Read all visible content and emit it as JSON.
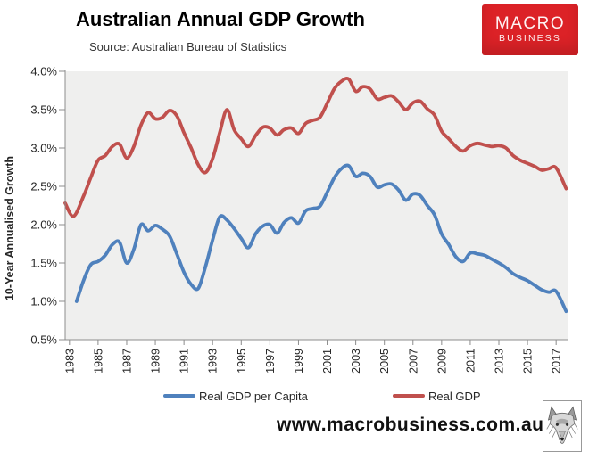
{
  "header": {
    "title": "Australian Annual GDP Growth",
    "subtitle": "Source: Australian Bureau of Statistics"
  },
  "logo": {
    "line1": "MACRO",
    "line2": "BUSINESS",
    "bg_color": "#dc2227",
    "text_color": "#ffffff"
  },
  "footer": {
    "watermark": "www.macrobusiness.com.au"
  },
  "chart_data": {
    "type": "line",
    "title": "Australian Annual GDP Growth",
    "xlabel": "",
    "ylabel": "10-Year Annualised Growth",
    "ylim": [
      0.5,
      4.0
    ],
    "xlim": [
      1982.7,
      2017.8
    ],
    "grid": false,
    "plot_bg": "#efefee",
    "axis_color": "#8c8c8c",
    "legend_position": "bottom",
    "y_tick_labels": [
      "4.0%",
      "3.5%",
      "3.0%",
      "2.5%",
      "2.0%",
      "1.5%",
      "1.0%",
      "0.5%"
    ],
    "y_tick_values": [
      4.0,
      3.5,
      3.0,
      2.5,
      2.0,
      1.5,
      1.0,
      0.5
    ],
    "x_tick_values": [
      1983,
      1985,
      1987,
      1989,
      1991,
      1993,
      1995,
      1997,
      1999,
      2001,
      2003,
      2005,
      2007,
      2009,
      2011,
      2013,
      2015,
      2017
    ],
    "series": [
      {
        "name": "Real GDP per Capita",
        "color": "#4f81bd",
        "x": [
          1983.5,
          1984,
          1984.5,
          1985,
          1985.5,
          1986,
          1986.5,
          1987,
          1987.5,
          1988,
          1988.5,
          1989,
          1989.5,
          1990,
          1990.5,
          1991,
          1991.5,
          1992,
          1992.5,
          1993,
          1993.5,
          1994,
          1994.5,
          1995,
          1995.5,
          1996,
          1996.5,
          1997,
          1997.5,
          1998,
          1998.5,
          1999,
          1999.5,
          2000,
          2000.5,
          2001,
          2001.5,
          2002,
          2002.5,
          2003,
          2003.5,
          2004,
          2004.5,
          2005,
          2005.5,
          2006,
          2006.5,
          2007,
          2007.5,
          2008,
          2008.5,
          2009,
          2009.5,
          2010,
          2010.5,
          2011,
          2011.5,
          2012,
          2012.5,
          2013,
          2013.5,
          2014,
          2014.5,
          2015,
          2015.5,
          2016,
          2016.5,
          2017,
          2017.7
        ],
        "values": [
          1.0,
          1.28,
          1.48,
          1.52,
          1.6,
          1.74,
          1.77,
          1.5,
          1.68,
          2.0,
          1.92,
          1.99,
          1.94,
          1.85,
          1.62,
          1.38,
          1.22,
          1.17,
          1.45,
          1.8,
          2.1,
          2.06,
          1.95,
          1.82,
          1.7,
          1.88,
          1.98,
          2.0,
          1.89,
          2.03,
          2.09,
          2.02,
          2.18,
          2.21,
          2.24,
          2.42,
          2.61,
          2.73,
          2.77,
          2.63,
          2.67,
          2.63,
          2.49,
          2.52,
          2.53,
          2.45,
          2.32,
          2.4,
          2.38,
          2.25,
          2.13,
          1.88,
          1.74,
          1.58,
          1.52,
          1.63,
          1.62,
          1.6,
          1.55,
          1.5,
          1.44,
          1.36,
          1.31,
          1.27,
          1.21,
          1.15,
          1.12,
          1.13,
          0.87
        ]
      },
      {
        "name": "Real GDP",
        "color": "#c0504d",
        "x": [
          1982.7,
          1983.3,
          1984,
          1984.5,
          1985,
          1985.5,
          1986,
          1986.5,
          1987,
          1987.5,
          1988,
          1988.5,
          1989,
          1989.5,
          1990,
          1990.5,
          1991,
          1991.5,
          1992,
          1992.5,
          1993,
          1993.5,
          1994,
          1994.5,
          1995,
          1995.5,
          1996,
          1996.5,
          1997,
          1997.5,
          1998,
          1998.5,
          1999,
          1999.5,
          2000,
          2000.5,
          2001,
          2001.5,
          2002,
          2002.5,
          2003,
          2003.5,
          2004,
          2004.5,
          2005,
          2005.5,
          2006,
          2006.5,
          2007,
          2007.5,
          2008,
          2008.5,
          2009,
          2009.5,
          2010,
          2010.5,
          2011,
          2011.5,
          2012,
          2012.5,
          2013,
          2013.5,
          2014,
          2014.5,
          2015,
          2015.5,
          2016,
          2016.5,
          2017,
          2017.7
        ],
        "values": [
          2.28,
          2.11,
          2.38,
          2.62,
          2.84,
          2.9,
          3.02,
          3.05,
          2.87,
          3.02,
          3.3,
          3.46,
          3.38,
          3.4,
          3.49,
          3.42,
          3.2,
          3.0,
          2.78,
          2.68,
          2.86,
          3.2,
          3.5,
          3.24,
          3.12,
          3.02,
          3.16,
          3.27,
          3.26,
          3.17,
          3.24,
          3.26,
          3.19,
          3.32,
          3.36,
          3.4,
          3.58,
          3.77,
          3.87,
          3.9,
          3.74,
          3.8,
          3.77,
          3.64,
          3.66,
          3.68,
          3.6,
          3.5,
          3.59,
          3.61,
          3.51,
          3.43,
          3.22,
          3.12,
          3.02,
          2.96,
          3.03,
          3.06,
          3.04,
          3.02,
          3.03,
          3.0,
          2.9,
          2.84,
          2.8,
          2.76,
          2.71,
          2.73,
          2.74,
          2.47
        ]
      }
    ]
  }
}
